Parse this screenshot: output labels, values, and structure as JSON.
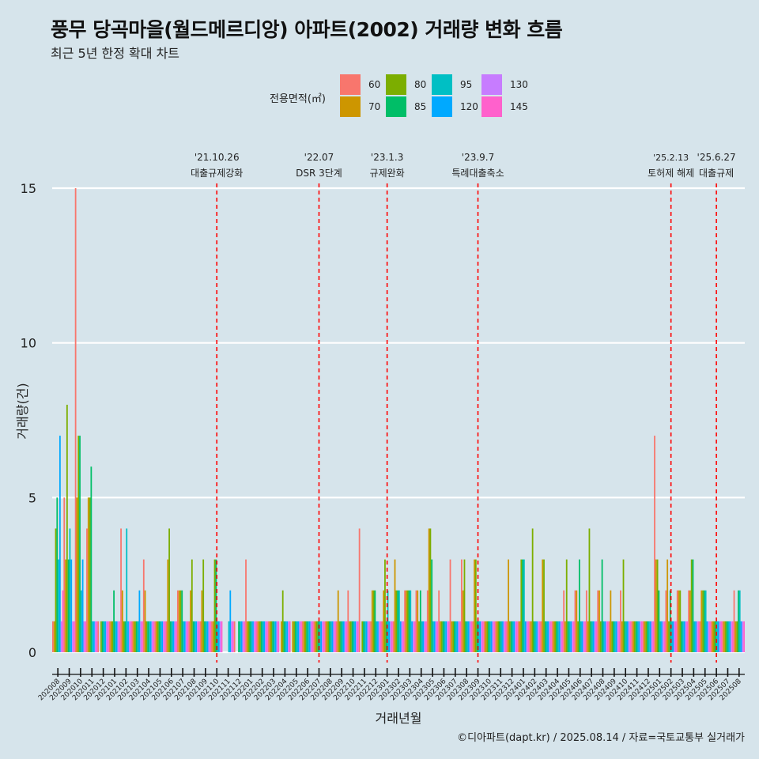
{
  "title": "풍무 당곡마을(월드메르디앙) 아파트(2002) 거래량 변화 흐름",
  "subtitle": "최근 5년 한정 확대 차트",
  "caption": "©디아파트(dapt.kr) / 2025.08.14 / 자료=국토교통부 실거래가",
  "chart_data": {
    "type": "bar",
    "xlabel": "거래년월",
    "ylabel": "거래량(건)",
    "ylim": [
      0,
      15
    ],
    "yticks": [
      0,
      5,
      10,
      15
    ],
    "grid": true,
    "legend": {
      "title": "전용면적(㎡)",
      "placement": "top",
      "entries": [
        {
          "label": "60",
          "color": "#F8766D"
        },
        {
          "label": "70",
          "color": "#CD9600"
        },
        {
          "label": "80",
          "color": "#7CAE00"
        },
        {
          "label": "85",
          "color": "#00BE67"
        },
        {
          "label": "95",
          "color": "#00BFC4"
        },
        {
          "label": "120",
          "color": "#00A9FF"
        },
        {
          "label": "130",
          "color": "#C77CFF"
        },
        {
          "label": "145",
          "color": "#FF61CC"
        }
      ]
    },
    "months": [
      "202008",
      "202009",
      "202010",
      "202011",
      "202012",
      "202101",
      "202102",
      "202103",
      "202104",
      "202105",
      "202106",
      "202107",
      "202108",
      "202109",
      "202110",
      "202111",
      "202112",
      "202201",
      "202202",
      "202203",
      "202204",
      "202205",
      "202206",
      "202207",
      "202208",
      "202209",
      "202210",
      "202211",
      "202212",
      "202301",
      "202302",
      "202303",
      "202304",
      "202305",
      "202306",
      "202307",
      "202308",
      "202309",
      "202310",
      "202311",
      "202312",
      "202401",
      "202402",
      "202403",
      "202404",
      "202405",
      "202406",
      "202407",
      "202408",
      "202409",
      "202410",
      "202411",
      "202412",
      "202501",
      "202502",
      "202503",
      "202504",
      "202505",
      "202506",
      "202507",
      "202508"
    ],
    "series": [
      {
        "name": "60",
        "values": [
          1,
          5,
          15,
          4,
          1,
          1,
          4,
          1,
          3,
          1,
          1,
          2,
          1,
          1,
          1,
          0,
          1,
          3,
          1,
          1,
          0,
          0,
          1,
          1,
          1,
          1,
          2,
          4,
          1,
          1,
          1,
          2,
          2,
          2,
          2,
          3,
          3,
          1,
          1,
          1,
          1,
          1,
          1,
          1,
          1,
          2,
          2,
          2,
          2,
          1,
          2,
          1,
          1,
          7,
          2,
          2,
          2,
          1,
          1,
          1,
          2
        ]
      },
      {
        "name": "70",
        "values": [
          1,
          3,
          5,
          5,
          0,
          1,
          2,
          1,
          2,
          1,
          3,
          2,
          2,
          2,
          1,
          0,
          0,
          1,
          1,
          1,
          1,
          1,
          1,
          1,
          1,
          2,
          1,
          0,
          2,
          2,
          3,
          2,
          2,
          4,
          1,
          1,
          2,
          3,
          1,
          1,
          3,
          1,
          1,
          3,
          1,
          1,
          2,
          1,
          2,
          2,
          1,
          1,
          1,
          3,
          3,
          2,
          2,
          2,
          1,
          1,
          1
        ]
      },
      {
        "name": "80",
        "values": [
          4,
          8,
          7,
          5,
          1,
          1,
          1,
          1,
          1,
          1,
          4,
          2,
          3,
          3,
          3,
          0,
          0,
          1,
          1,
          1,
          2,
          1,
          1,
          1,
          1,
          1,
          1,
          1,
          2,
          3,
          2,
          2,
          1,
          4,
          1,
          1,
          3,
          3,
          1,
          1,
          1,
          3,
          4,
          3,
          1,
          3,
          1,
          4,
          1,
          1,
          3,
          1,
          1,
          3,
          1,
          2,
          3,
          2,
          1,
          1,
          1
        ]
      },
      {
        "name": "85",
        "values": [
          5,
          3,
          7,
          6,
          1,
          2,
          1,
          1,
          1,
          1,
          1,
          2,
          1,
          1,
          3,
          0,
          1,
          1,
          1,
          1,
          1,
          1,
          1,
          1,
          1,
          1,
          1,
          1,
          2,
          1,
          2,
          2,
          2,
          3,
          1,
          1,
          1,
          1,
          1,
          1,
          1,
          3,
          1,
          1,
          1,
          1,
          3,
          1,
          3,
          1,
          1,
          1,
          1,
          2,
          2,
          1,
          3,
          2,
          1,
          1,
          2
        ]
      },
      {
        "name": "95",
        "values": [
          3,
          4,
          2,
          1,
          1,
          1,
          4,
          1,
          1,
          1,
          1,
          1,
          1,
          1,
          1,
          1,
          1,
          1,
          1,
          1,
          1,
          1,
          1,
          1,
          1,
          1,
          1,
          1,
          1,
          2,
          2,
          2,
          1,
          1,
          1,
          1,
          1,
          1,
          1,
          1,
          1,
          3,
          1,
          1,
          1,
          1,
          1,
          1,
          1,
          1,
          1,
          1,
          1,
          1,
          1,
          1,
          1,
          2,
          1,
          1,
          2
        ]
      },
      {
        "name": "120",
        "values": [
          7,
          3,
          3,
          1,
          1,
          1,
          1,
          2,
          1,
          1,
          1,
          1,
          1,
          1,
          1,
          2,
          1,
          1,
          1,
          1,
          1,
          1,
          1,
          1,
          1,
          1,
          1,
          1,
          1,
          1,
          1,
          1,
          1,
          1,
          1,
          1,
          1,
          1,
          1,
          1,
          1,
          1,
          1,
          1,
          1,
          1,
          1,
          1,
          1,
          1,
          1,
          1,
          1,
          1,
          1,
          1,
          1,
          1,
          1,
          1,
          1
        ]
      },
      {
        "name": "130",
        "values": [
          1,
          1,
          1,
          1,
          1,
          1,
          1,
          1,
          1,
          1,
          1,
          1,
          1,
          1,
          1,
          1,
          1,
          1,
          1,
          1,
          1,
          1,
          1,
          1,
          1,
          1,
          1,
          1,
          1,
          1,
          1,
          1,
          1,
          1,
          1,
          1,
          1,
          1,
          1,
          1,
          1,
          1,
          1,
          1,
          1,
          1,
          1,
          1,
          1,
          1,
          1,
          1,
          1,
          1,
          1,
          1,
          1,
          1,
          1,
          1,
          1
        ]
      },
      {
        "name": "145",
        "values": [
          2,
          1,
          1,
          1,
          1,
          1,
          1,
          1,
          1,
          1,
          1,
          1,
          1,
          1,
          1,
          1,
          1,
          1,
          1,
          1,
          1,
          1,
          1,
          1,
          1,
          1,
          1,
          1,
          1,
          1,
          1,
          1,
          1,
          1,
          1,
          1,
          1,
          1,
          1,
          1,
          1,
          1,
          1,
          1,
          1,
          1,
          1,
          1,
          1,
          1,
          1,
          1,
          1,
          1,
          1,
          1,
          1,
          1,
          1,
          1,
          1
        ]
      }
    ],
    "events": [
      {
        "month": "202110",
        "date": "'21.10.26",
        "label": "대출규제강화"
      },
      {
        "month": "202207",
        "date": "'22.07",
        "label": "DSR 3단계"
      },
      {
        "month": "202301",
        "date": "'23.1.3",
        "label": "규제완화"
      },
      {
        "month": "202309",
        "date": "'23.9.7",
        "label": "특례대출축소"
      },
      {
        "month": "202502",
        "date": "'25.2.13",
        "label": "토허제 해제"
      },
      {
        "month": "202506",
        "date": "'25.6.27",
        "label": "대출규제"
      }
    ]
  }
}
